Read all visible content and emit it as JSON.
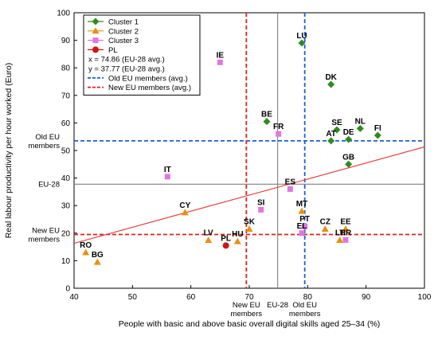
{
  "chart_data": {
    "type": "scatter",
    "xlabel": "People with basic and above basic overall digital skills aged 25–34 (%)",
    "ylabel": "Real labour productivity per hour worked (Euro)",
    "xlim": [
      40,
      100
    ],
    "ylim": [
      0,
      100
    ],
    "x_ticks": [
      40,
      50,
      60,
      70,
      80,
      90,
      100
    ],
    "y_ticks": [
      0,
      10,
      20,
      30,
      40,
      50,
      60,
      70,
      80,
      90,
      100
    ],
    "grid": false,
    "legend_position": "top-left",
    "series": [
      {
        "name": "Cluster 1",
        "marker": "diamond",
        "color": "#2e8b1e",
        "points": [
          {
            "label": "LU",
            "x": 79.0,
            "y": 89.0
          },
          {
            "label": "DK",
            "x": 84.0,
            "y": 74.0
          },
          {
            "label": "BE",
            "x": 73.0,
            "y": 60.5
          },
          {
            "label": "SE",
            "x": 85.0,
            "y": 57.5
          },
          {
            "label": "NL",
            "x": 89.0,
            "y": 58.0
          },
          {
            "label": "FI",
            "x": 92.0,
            "y": 55.5
          },
          {
            "label": "AT",
            "x": 84.0,
            "y": 53.5
          },
          {
            "label": "DE",
            "x": 87.0,
            "y": 54.0
          },
          {
            "label": "GB",
            "x": 87.0,
            "y": 45.0
          }
        ]
      },
      {
        "name": "Cluster 2",
        "marker": "triangle",
        "color": "#e8900c",
        "points": [
          {
            "label": "CY",
            "x": 59.0,
            "y": 27.5
          },
          {
            "label": "LV",
            "x": 63.0,
            "y": 17.5
          },
          {
            "label": "HU",
            "x": 68.0,
            "y": 17.0
          },
          {
            "label": "SK",
            "x": 70.0,
            "y": 21.5
          },
          {
            "label": "MT",
            "x": 79.0,
            "y": 28.0
          },
          {
            "label": "CZ",
            "x": 83.0,
            "y": 21.5
          },
          {
            "label": "EE",
            "x": 86.5,
            "y": 21.5
          },
          {
            "label": "LT",
            "x": 85.5,
            "y": 17.5
          },
          {
            "label": "RO",
            "x": 42.0,
            "y": 13.0
          },
          {
            "label": "BG",
            "x": 44.0,
            "y": 9.5
          }
        ]
      },
      {
        "name": "Cluster 3",
        "marker": "square",
        "color": "#e077e0",
        "points": [
          {
            "label": "IE",
            "x": 65.0,
            "y": 82.0
          },
          {
            "label": "FR",
            "x": 75.0,
            "y": 56.0
          },
          {
            "label": "IT",
            "x": 56.0,
            "y": 40.5
          },
          {
            "label": "ES",
            "x": 77.0,
            "y": 36.0
          },
          {
            "label": "SI",
            "x": 72.0,
            "y": 28.5
          },
          {
            "label": "PT",
            "x": 79.5,
            "y": 22.5
          },
          {
            "label": "EL",
            "x": 79.0,
            "y": 20.0
          },
          {
            "label": "HR",
            "x": 86.5,
            "y": 17.5
          }
        ]
      },
      {
        "name": "PL",
        "marker": "circle",
        "color": "#d11414",
        "points": [
          {
            "label": "PL",
            "x": 66.0,
            "y": 15.5
          }
        ]
      }
    ],
    "trend_line": {
      "color": "#e84040",
      "x": [
        40,
        100
      ],
      "y": [
        16.3,
        51.3
      ]
    },
    "reference_lines": [
      {
        "name": "EU-28 x",
        "axis": "x",
        "value": 74.86,
        "color": "#808080",
        "style": "solid",
        "label": "EU-28"
      },
      {
        "name": "EU-28 y",
        "axis": "y",
        "value": 37.77,
        "color": "#808080",
        "style": "solid",
        "label": "EU-28"
      },
      {
        "name": "Old EU members (avg.)",
        "axis": "x",
        "value": 79.5,
        "color": "#1f5fd6",
        "style": "dashed",
        "label": "Old EU members"
      },
      {
        "name": "Old EU members (avg.)",
        "axis": "y",
        "value": 53.5,
        "color": "#1f5fd6",
        "style": "dashed",
        "label": "Old EU members"
      },
      {
        "name": "New EU members (avg.)",
        "axis": "x",
        "value": 69.5,
        "color": "#e01f1f",
        "style": "dashed",
        "label": "New EU members"
      },
      {
        "name": "New EU members (avg.)",
        "axis": "y",
        "value": 19.5,
        "color": "#e01f1f",
        "style": "dashed",
        "label": "New EU members"
      }
    ],
    "legend": {
      "entries": [
        {
          "kind": "marker",
          "series": 0,
          "text": "Cluster 1"
        },
        {
          "kind": "marker",
          "series": 1,
          "text": "Cluster 2"
        },
        {
          "kind": "marker",
          "series": 2,
          "text": "Cluster 3"
        },
        {
          "kind": "marker",
          "series": 3,
          "text": "PL"
        },
        {
          "kind": "text",
          "text": "x = 74.86 (EU-28 avg.)"
        },
        {
          "kind": "text",
          "text": "y = 37.77 (EU-28 avg.)"
        },
        {
          "kind": "dash",
          "color": "#1f5fd6",
          "text": "Old EU members (avg.)"
        },
        {
          "kind": "dash",
          "color": "#e01f1f",
          "text": "New EU members (avg.)"
        }
      ]
    }
  }
}
